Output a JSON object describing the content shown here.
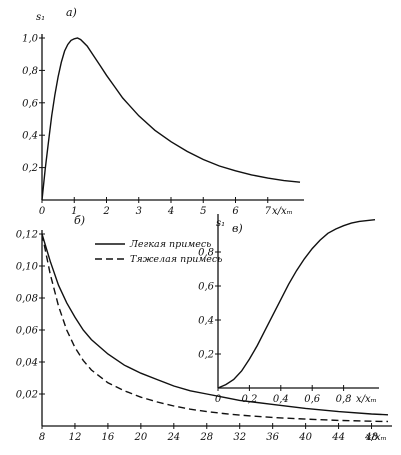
{
  "chart_data": [
    {
      "panel": "а)",
      "type": "line",
      "ylabel": "s₁",
      "xlabel": "x/xₘ",
      "xlim": [
        0,
        8
      ],
      "ylim": [
        0,
        1.0
      ],
      "x_ticks": [
        "0",
        "1",
        "2",
        "3",
        "4",
        "5",
        "6",
        "7"
      ],
      "y_ticks": [
        "0,2",
        "0,4",
        "0,6",
        "0,8",
        "1,0"
      ],
      "series": [
        {
          "x": [
            0,
            0.1,
            0.2,
            0.3,
            0.4,
            0.5,
            0.6,
            0.7,
            0.8,
            0.9,
            1.0,
            1.1,
            1.2,
            1.4,
            1.6,
            1.8,
            2.0,
            2.25,
            2.5,
            3.0,
            3.5,
            4.0,
            4.5,
            5.0,
            5.5,
            6.0,
            6.5,
            7.0,
            7.5,
            8.0
          ],
          "y": [
            0,
            0.19,
            0.36,
            0.52,
            0.65,
            0.76,
            0.85,
            0.92,
            0.96,
            0.985,
            0.995,
            1.0,
            0.99,
            0.95,
            0.89,
            0.83,
            0.77,
            0.7,
            0.63,
            0.52,
            0.43,
            0.36,
            0.3,
            0.25,
            0.21,
            0.18,
            0.155,
            0.135,
            0.12,
            0.11
          ]
        }
      ]
    },
    {
      "panel": "б)",
      "type": "line",
      "xlabel": "x/xₘ",
      "xlim": [
        8,
        50
      ],
      "ylim": [
        0,
        0.12
      ],
      "x_ticks": [
        "8",
        "12",
        "16",
        "20",
        "24",
        "28",
        "32",
        "36",
        "40",
        "44",
        "48"
      ],
      "y_ticks": [
        "0,02",
        "0,04",
        "0,06",
        "0,08",
        "0,10",
        "0,12"
      ],
      "legend_position": "top",
      "series": [
        {
          "name": "Легкая примесь",
          "style": "solid",
          "x": [
            8,
            9,
            10,
            11,
            12,
            13,
            14,
            16,
            18,
            20,
            22,
            24,
            26,
            28,
            30,
            32,
            36,
            40,
            44,
            48,
            50
          ],
          "y": [
            0.12,
            0.103,
            0.088,
            0.077,
            0.068,
            0.06,
            0.054,
            0.045,
            0.038,
            0.033,
            0.029,
            0.025,
            0.022,
            0.02,
            0.018,
            0.016,
            0.0135,
            0.011,
            0.009,
            0.0075,
            0.007
          ]
        },
        {
          "name": "Тяжелая примесь",
          "style": "dashed",
          "x": [
            8,
            9,
            10,
            11,
            12,
            13,
            14,
            16,
            18,
            20,
            22,
            24,
            26,
            28,
            30,
            32,
            36,
            40,
            44,
            48,
            50
          ],
          "y": [
            0.12,
            0.095,
            0.075,
            0.06,
            0.049,
            0.041,
            0.035,
            0.027,
            0.022,
            0.018,
            0.015,
            0.0125,
            0.0105,
            0.009,
            0.0078,
            0.0068,
            0.0053,
            0.0043,
            0.0035,
            0.003,
            0.0028
          ]
        }
      ]
    },
    {
      "panel": "в)",
      "type": "line",
      "ylabel": "s₁",
      "xlabel": "x/xₘ",
      "xlim": [
        0,
        1.0
      ],
      "ylim": [
        0,
        1.0
      ],
      "x_ticks": [
        "0",
        "0,2",
        "0,4",
        "0,6",
        "0,8"
      ],
      "y_ticks": [
        "0,2",
        "0,4",
        "0,6",
        "0,8"
      ],
      "series": [
        {
          "x": [
            0,
            0.05,
            0.1,
            0.15,
            0.2,
            0.25,
            0.3,
            0.35,
            0.4,
            0.45,
            0.5,
            0.55,
            0.6,
            0.65,
            0.7,
            0.75,
            0.8,
            0.85,
            0.9,
            0.95,
            1.0
          ],
          "y": [
            0,
            0.02,
            0.05,
            0.1,
            0.17,
            0.25,
            0.34,
            0.43,
            0.52,
            0.61,
            0.69,
            0.76,
            0.82,
            0.87,
            0.91,
            0.935,
            0.955,
            0.97,
            0.98,
            0.985,
            0.99
          ]
        }
      ]
    }
  ]
}
